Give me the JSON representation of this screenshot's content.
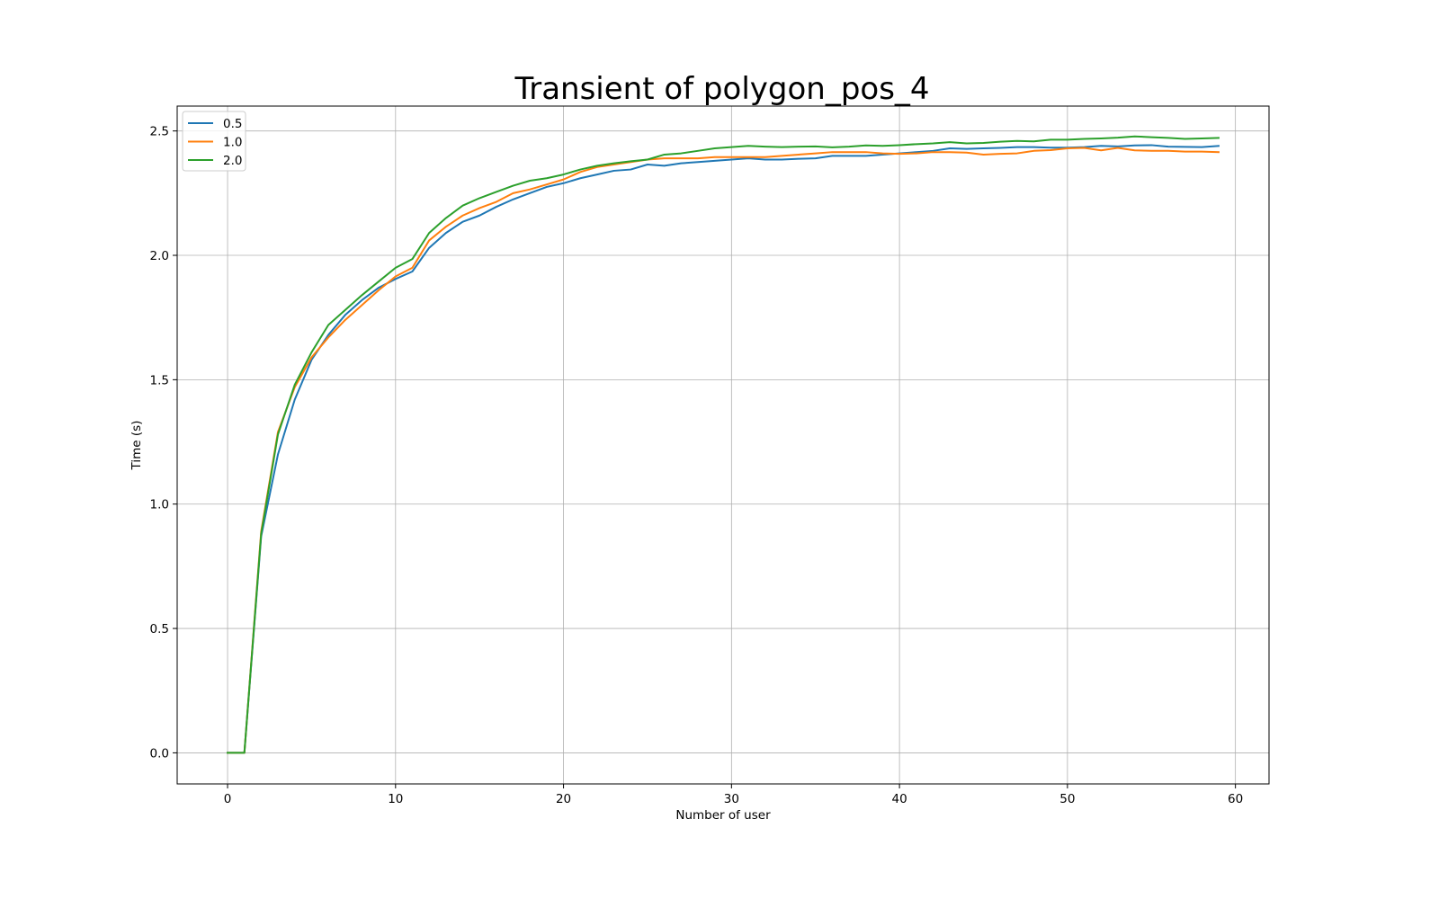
{
  "chart_data": {
    "type": "line",
    "title": "Transient of polygon_pos_4",
    "xlabel": "Number of user",
    "ylabel": "Time (s)",
    "xlim": [
      -3,
      62
    ],
    "ylim": [
      -0.125,
      2.6
    ],
    "xticks": [
      0,
      10,
      20,
      30,
      40,
      50,
      60
    ],
    "yticks": [
      0.0,
      0.5,
      1.0,
      1.5,
      2.0,
      2.5
    ],
    "xtick_labels": [
      "0",
      "10",
      "20",
      "30",
      "40",
      "50",
      "60"
    ],
    "ytick_labels": [
      "0.0",
      "0.5",
      "1.0",
      "1.5",
      "2.0",
      "2.5"
    ],
    "grid": true,
    "legend_position": "top-left",
    "series": [
      {
        "name": "0.5",
        "color": "#1f77b4",
        "x": [
          0,
          1,
          2,
          3,
          4,
          5,
          6,
          7,
          8,
          9,
          10,
          11,
          12,
          13,
          14,
          15,
          16,
          17,
          18,
          19,
          20,
          21,
          22,
          23,
          24,
          25,
          26,
          27,
          28,
          29,
          30,
          31,
          32,
          33,
          34,
          35,
          36,
          37,
          38,
          39,
          40,
          41,
          42,
          43,
          44,
          45,
          46,
          47,
          48,
          49,
          50,
          51,
          52,
          53,
          54,
          55,
          56,
          57,
          58,
          59
        ],
        "y": [
          0.0,
          0.0,
          0.87,
          1.2,
          1.42,
          1.58,
          1.68,
          1.76,
          1.82,
          1.87,
          1.905,
          1.935,
          2.03,
          2.09,
          2.135,
          2.16,
          2.195,
          2.225,
          2.25,
          2.275,
          2.29,
          2.31,
          2.325,
          2.34,
          2.345,
          2.365,
          2.36,
          2.37,
          2.375,
          2.38,
          2.385,
          2.39,
          2.385,
          2.385,
          2.388,
          2.39,
          2.4,
          2.4,
          2.4,
          2.405,
          2.41,
          2.415,
          2.42,
          2.43,
          2.428,
          2.43,
          2.432,
          2.435,
          2.435,
          2.433,
          2.433,
          2.435,
          2.44,
          2.438,
          2.442,
          2.443,
          2.437,
          2.436,
          2.435,
          2.44
        ]
      },
      {
        "name": "1.0",
        "color": "#ff7f0e",
        "x": [
          0,
          1,
          2,
          3,
          4,
          5,
          6,
          7,
          8,
          9,
          10,
          11,
          12,
          13,
          14,
          15,
          16,
          17,
          18,
          19,
          20,
          21,
          22,
          23,
          24,
          25,
          26,
          27,
          28,
          29,
          30,
          31,
          32,
          33,
          34,
          35,
          36,
          37,
          38,
          39,
          40,
          41,
          42,
          43,
          44,
          45,
          46,
          47,
          48,
          49,
          50,
          51,
          52,
          53,
          54,
          55,
          56,
          57,
          58,
          59
        ],
        "y": [
          0.0,
          0.0,
          0.89,
          1.29,
          1.47,
          1.59,
          1.67,
          1.74,
          1.8,
          1.86,
          1.915,
          1.95,
          2.06,
          2.115,
          2.16,
          2.19,
          2.215,
          2.25,
          2.265,
          2.285,
          2.305,
          2.335,
          2.355,
          2.365,
          2.375,
          2.385,
          2.39,
          2.39,
          2.39,
          2.395,
          2.395,
          2.395,
          2.395,
          2.4,
          2.405,
          2.41,
          2.415,
          2.415,
          2.415,
          2.41,
          2.408,
          2.41,
          2.415,
          2.415,
          2.413,
          2.405,
          2.408,
          2.41,
          2.42,
          2.423,
          2.43,
          2.432,
          2.422,
          2.432,
          2.422,
          2.42,
          2.42,
          2.417,
          2.417,
          2.415
        ]
      },
      {
        "name": "2.0",
        "color": "#2ca02c",
        "x": [
          0,
          1,
          2,
          3,
          4,
          5,
          6,
          7,
          8,
          9,
          10,
          11,
          12,
          13,
          14,
          15,
          16,
          17,
          18,
          19,
          20,
          21,
          22,
          23,
          24,
          25,
          26,
          27,
          28,
          29,
          30,
          31,
          32,
          33,
          34,
          35,
          36,
          37,
          38,
          39,
          40,
          41,
          42,
          43,
          44,
          45,
          46,
          47,
          48,
          49,
          50,
          51,
          52,
          53,
          54,
          55,
          56,
          57,
          58,
          59
        ],
        "y": [
          0.0,
          0.0,
          0.88,
          1.28,
          1.48,
          1.61,
          1.72,
          1.78,
          1.84,
          1.895,
          1.95,
          1.985,
          2.09,
          2.15,
          2.2,
          2.23,
          2.255,
          2.28,
          2.3,
          2.31,
          2.325,
          2.345,
          2.36,
          2.37,
          2.378,
          2.385,
          2.405,
          2.41,
          2.42,
          2.43,
          2.435,
          2.44,
          2.437,
          2.435,
          2.437,
          2.438,
          2.434,
          2.437,
          2.442,
          2.44,
          2.443,
          2.447,
          2.45,
          2.455,
          2.45,
          2.452,
          2.457,
          2.46,
          2.458,
          2.465,
          2.465,
          2.468,
          2.47,
          2.473,
          2.478,
          2.475,
          2.472,
          2.468,
          2.47,
          2.472
        ]
      }
    ]
  }
}
